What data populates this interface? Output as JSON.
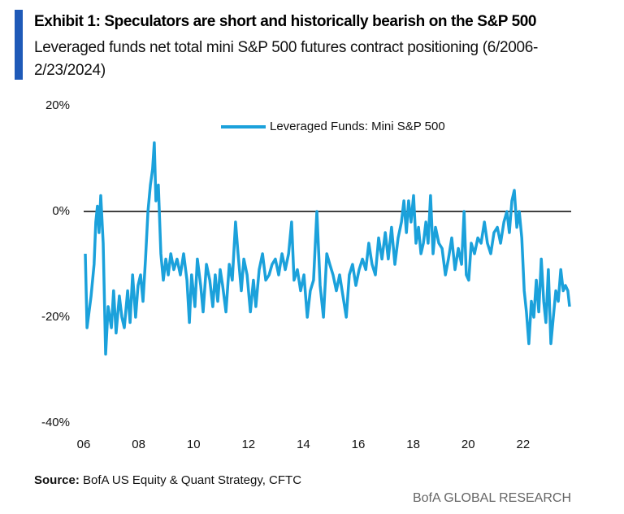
{
  "chart_data": {
    "type": "line",
    "title": "Exhibit 1: Speculators are short and historically bearish on the S&P 500",
    "subtitle": "Leveraged funds net total mini S&P 500 futures contract positioning (6/2006-2/23/2024)",
    "source_label": "Source:",
    "source": "BofA US Equity & Quant Strategy, CFTC",
    "brand": "BofA GLOBAL RESEARCH",
    "xlim": [
      2006,
      2023.75
    ],
    "xticks": [
      {
        "value": 2006,
        "label": "06"
      },
      {
        "value": 2008,
        "label": "08"
      },
      {
        "value": 2010,
        "label": "10"
      },
      {
        "value": 2012,
        "label": "12"
      },
      {
        "value": 2014,
        "label": "14"
      },
      {
        "value": 2016,
        "label": "16"
      },
      {
        "value": 2018,
        "label": "18"
      },
      {
        "value": 2020,
        "label": "20"
      },
      {
        "value": 2022,
        "label": "22"
      }
    ],
    "ylim": [
      -40,
      20
    ],
    "yticks": [
      {
        "value": 20,
        "label": "20%"
      },
      {
        "value": 0,
        "label": "0%"
      },
      {
        "value": -20,
        "label": "-20%"
      },
      {
        "value": -40,
        "label": "-40%"
      }
    ],
    "grid": false,
    "zero_line": true,
    "legend": "upper center",
    "x": [
      2006.06,
      2006.12,
      2006.27,
      2006.38,
      2006.44,
      2006.5,
      2006.56,
      2006.62,
      2006.71,
      2006.8,
      2006.89,
      2007.01,
      2007.09,
      2007.18,
      2007.3,
      2007.39,
      2007.48,
      2007.6,
      2007.69,
      2007.78,
      2007.89,
      2007.98,
      2008.07,
      2008.16,
      2008.25,
      2008.34,
      2008.43,
      2008.51,
      2008.57,
      2008.63,
      2008.72,
      2008.81,
      2008.9,
      2008.99,
      2009.08,
      2009.17,
      2009.28,
      2009.4,
      2009.52,
      2009.64,
      2009.76,
      2009.85,
      2009.93,
      2010.05,
      2010.14,
      2010.26,
      2010.35,
      2010.47,
      2010.59,
      2010.7,
      2010.79,
      2010.88,
      2010.97,
      2011.06,
      2011.18,
      2011.3,
      2011.41,
      2011.53,
      2011.62,
      2011.74,
      2011.83,
      2011.95,
      2012.07,
      2012.18,
      2012.27,
      2012.39,
      2012.51,
      2012.63,
      2012.75,
      2012.86,
      2012.98,
      2013.1,
      2013.22,
      2013.34,
      2013.46,
      2013.57,
      2013.66,
      2013.78,
      2013.9,
      2014.02,
      2014.14,
      2014.25,
      2014.37,
      2014.49,
      2014.61,
      2014.73,
      2014.85,
      2014.96,
      2015.08,
      2015.2,
      2015.32,
      2015.44,
      2015.56,
      2015.67,
      2015.79,
      2015.91,
      2016.03,
      2016.15,
      2016.27,
      2016.38,
      2016.5,
      2016.62,
      2016.74,
      2016.86,
      2016.98,
      2017.09,
      2017.21,
      2017.33,
      2017.45,
      2017.57,
      2017.66,
      2017.75,
      2017.83,
      2017.92,
      2018.01,
      2018.1,
      2018.19,
      2018.28,
      2018.37,
      2018.46,
      2018.54,
      2018.63,
      2018.72,
      2018.81,
      2018.93,
      2019.05,
      2019.17,
      2019.28,
      2019.4,
      2019.52,
      2019.64,
      2019.76,
      2019.85,
      2019.93,
      2020.02,
      2020.11,
      2020.23,
      2020.35,
      2020.47,
      2020.59,
      2020.7,
      2020.82,
      2020.94,
      2021.06,
      2021.18,
      2021.3,
      2021.41,
      2021.5,
      2021.59,
      2021.68,
      2021.77,
      2021.86,
      2021.95,
      2022.04,
      2022.12,
      2022.21,
      2022.3,
      2022.39,
      2022.48,
      2022.57,
      2022.66,
      2022.75,
      2022.83,
      2022.92,
      2023.01,
      2023.1,
      2023.19,
      2023.28,
      2023.37,
      2023.46,
      2023.54,
      2023.63,
      2023.69
    ],
    "series": [
      {
        "name": "Leveraged Funds: Mini S&P 500",
        "color": "#1ba1db",
        "values": [
          -8,
          -22,
          -16,
          -10,
          -2,
          1,
          -4,
          3,
          -6,
          -27,
          -18,
          -22,
          -15,
          -23,
          -16,
          -20,
          -22,
          -15,
          -21,
          -12,
          -20,
          -14,
          -12,
          -17,
          -9,
          0,
          5,
          8,
          13,
          2,
          5,
          -8,
          -13,
          -9,
          -12,
          -8,
          -11,
          -9,
          -12,
          -8,
          -13,
          -21,
          -12,
          -18,
          -9,
          -14,
          -19,
          -10,
          -13,
          -18,
          -12,
          -17,
          -11,
          -14,
          -19,
          -10,
          -13,
          -2,
          -8,
          -15,
          -9,
          -12,
          -19,
          -13,
          -18,
          -11,
          -8,
          -13,
          -12,
          -10,
          -9,
          -12,
          -8,
          -11,
          -8,
          -2,
          -13,
          -11,
          -15,
          -12,
          -20,
          -15,
          -13,
          0,
          -14,
          -20,
          -8,
          -10,
          -12,
          -15,
          -12,
          -16,
          -20,
          -12,
          -10,
          -14,
          -11,
          -9,
          -11,
          -6,
          -10,
          -12,
          -5,
          -9,
          -4,
          -9,
          -3,
          -10,
          -5,
          -2,
          2,
          -4,
          2,
          -2,
          3,
          -6,
          -3,
          -8,
          -6,
          -2,
          -6,
          3,
          -8,
          -3,
          -6,
          -7,
          -12,
          -9,
          -5,
          -11,
          -7,
          -10,
          0,
          -12,
          -13,
          -6,
          -8,
          -5,
          -6,
          -2,
          -6,
          -8,
          -4,
          -3,
          -6,
          -2,
          0,
          -4,
          2,
          4,
          -3,
          0,
          -5,
          -15,
          -19,
          -25,
          -17,
          -20,
          -13,
          -19,
          -9,
          -17,
          -21,
          -11,
          -25,
          -20,
          -15,
          -17,
          -11,
          -15,
          -14,
          -15,
          -18
        ]
      }
    ]
  }
}
